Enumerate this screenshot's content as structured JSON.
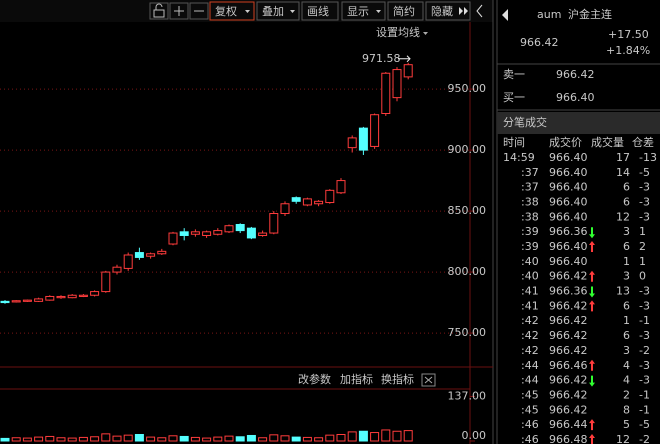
{
  "toolbar": [
    "复权",
    "叠加",
    "画线",
    "显示",
    "简约",
    "隐藏"
  ],
  "chart": {
    "ma_setting": "设置均线",
    "ylim": [
      723,
      1005
    ],
    "yticks": [
      {
        "value": 750,
        "label": "750.00"
      },
      {
        "value": 800,
        "label": "800.00"
      },
      {
        "value": 850,
        "label": "850.00"
      },
      {
        "value": 900,
        "label": "900.00"
      },
      {
        "value": 950,
        "label": "950.00"
      }
    ],
    "candles": [
      {
        "open": 776,
        "close": 775,
        "high": 777,
        "low": 774
      },
      {
        "open": 775.5,
        "close": 776.5,
        "high": 777,
        "low": 775
      },
      {
        "open": 776,
        "close": 777,
        "high": 777.5,
        "low": 775.5
      },
      {
        "open": 776,
        "close": 778,
        "high": 779,
        "low": 775.5
      },
      {
        "open": 777,
        "close": 780,
        "high": 781,
        "low": 776.5
      },
      {
        "open": 779,
        "close": 780,
        "high": 781,
        "low": 778
      },
      {
        "open": 779,
        "close": 781,
        "high": 782,
        "low": 778.5
      },
      {
        "open": 780,
        "close": 781,
        "high": 782,
        "low": 779.5
      },
      {
        "open": 781,
        "close": 784,
        "high": 785,
        "low": 780
      },
      {
        "open": 784,
        "close": 800,
        "high": 801,
        "low": 783
      },
      {
        "open": 800,
        "close": 804,
        "high": 806,
        "low": 798
      },
      {
        "open": 803,
        "close": 814,
        "high": 816,
        "low": 801
      },
      {
        "open": 816,
        "close": 812,
        "high": 820,
        "low": 810
      },
      {
        "open": 813,
        "close": 815,
        "high": 816,
        "low": 811
      },
      {
        "open": 815,
        "close": 817,
        "high": 819,
        "low": 814
      },
      {
        "open": 823,
        "close": 832,
        "high": 833,
        "low": 822
      },
      {
        "open": 833,
        "close": 830,
        "high": 836,
        "low": 826
      },
      {
        "open": 831,
        "close": 833,
        "high": 835,
        "low": 829
      },
      {
        "open": 830,
        "close": 833,
        "high": 834,
        "low": 828
      },
      {
        "open": 831,
        "close": 834,
        "high": 836,
        "low": 830
      },
      {
        "open": 833,
        "close": 838,
        "high": 839,
        "low": 832
      },
      {
        "open": 839,
        "close": 834,
        "high": 840,
        "low": 832
      },
      {
        "open": 836,
        "close": 828,
        "high": 837,
        "low": 827
      },
      {
        "open": 830,
        "close": 832,
        "high": 834,
        "low": 829
      },
      {
        "open": 832,
        "close": 848,
        "high": 850,
        "low": 831
      },
      {
        "open": 848,
        "close": 856,
        "high": 858,
        "low": 846
      },
      {
        "open": 861,
        "close": 858,
        "high": 862,
        "low": 856
      },
      {
        "open": 855,
        "close": 860,
        "high": 861,
        "low": 854
      },
      {
        "open": 856,
        "close": 858,
        "high": 859,
        "low": 854
      },
      {
        "open": 857,
        "close": 867,
        "high": 868,
        "low": 856
      },
      {
        "open": 865,
        "close": 875,
        "high": 877,
        "low": 864
      },
      {
        "open": 902,
        "close": 910,
        "high": 912,
        "low": 898
      },
      {
        "open": 918,
        "close": 900,
        "high": 919,
        "low": 896
      },
      {
        "open": 903,
        "close": 929,
        "high": 930,
        "low": 901
      },
      {
        "open": 930,
        "close": 963,
        "high": 964,
        "low": 928
      },
      {
        "open": 943,
        "close": 966,
        "high": 968,
        "low": 940
      },
      {
        "open": 960,
        "close": 970,
        "high": 971.58,
        "low": 958
      }
    ],
    "indicator_buttons": [
      "改参数",
      "加指标",
      "换指标"
    ],
    "volume": {
      "ylim": [
        0,
        200
      ],
      "yticks": [
        {
          "value": 137,
          "label": "137.00"
        },
        {
          "value": 0,
          "label": "0.00"
        }
      ],
      "values": [
        8,
        10,
        9,
        12,
        14,
        10,
        9,
        11,
        13,
        22,
        15,
        18,
        20,
        12,
        10,
        16,
        14,
        11,
        9,
        12,
        15,
        13,
        17,
        10,
        19,
        16,
        12,
        11,
        10,
        18,
        20,
        28,
        30,
        26,
        34,
        30,
        32
      ]
    }
  },
  "quote": {
    "code": "aum",
    "name": "沪金主连",
    "price": "966.42",
    "change": "+17.50",
    "pct": "+1.84%",
    "ask_label": "卖一",
    "ask": "966.42",
    "bid_label": "买一",
    "bid": "966.40"
  },
  "trades": {
    "title": "分笔成交",
    "columns": [
      "时间",
      "成交价",
      "成交量",
      "仓差"
    ],
    "rows": [
      [
        "14:59",
        "966.40",
        "17",
        "-13"
      ],
      [
        ":37",
        "966.40",
        "14",
        "-5"
      ],
      [
        ":37",
        "966.40",
        "6",
        "-3"
      ],
      [
        ":38",
        "966.40",
        "6",
        "-3"
      ],
      [
        ":38",
        "966.40",
        "12",
        "-3"
      ],
      [
        ":39",
        "966.36",
        "3",
        "1"
      ],
      [
        ":39",
        "966.40",
        "6",
        "2"
      ],
      [
        ":40",
        "966.40",
        "1",
        "1"
      ],
      [
        ":40",
        "966.42",
        "3",
        "0"
      ],
      [
        ":41",
        "966.36",
        "13",
        "-3"
      ],
      [
        ":41",
        "966.42",
        "6",
        "-3"
      ],
      [
        ":42",
        "966.42",
        "1",
        "-1"
      ],
      [
        ":42",
        "966.42",
        "6",
        "-3"
      ],
      [
        ":42",
        "966.42",
        "3",
        "-2"
      ],
      [
        ":44",
        "966.46",
        "4",
        "-3"
      ],
      [
        ":44",
        "966.42",
        "4",
        "-3"
      ],
      [
        ":45",
        "966.42",
        "2",
        "-1"
      ],
      [
        ":45",
        "966.42",
        "8",
        "-1"
      ],
      [
        ":46",
        "966.44",
        "5",
        "-5"
      ],
      [
        ":46",
        "966.48",
        "12",
        "-2"
      ]
    ],
    "dirs": [
      "",
      "",
      "",
      "",
      "",
      "down",
      "up",
      "",
      "up",
      "down",
      "up",
      "",
      "",
      "",
      "up",
      "down",
      "",
      "",
      "up",
      "up"
    ]
  }
}
